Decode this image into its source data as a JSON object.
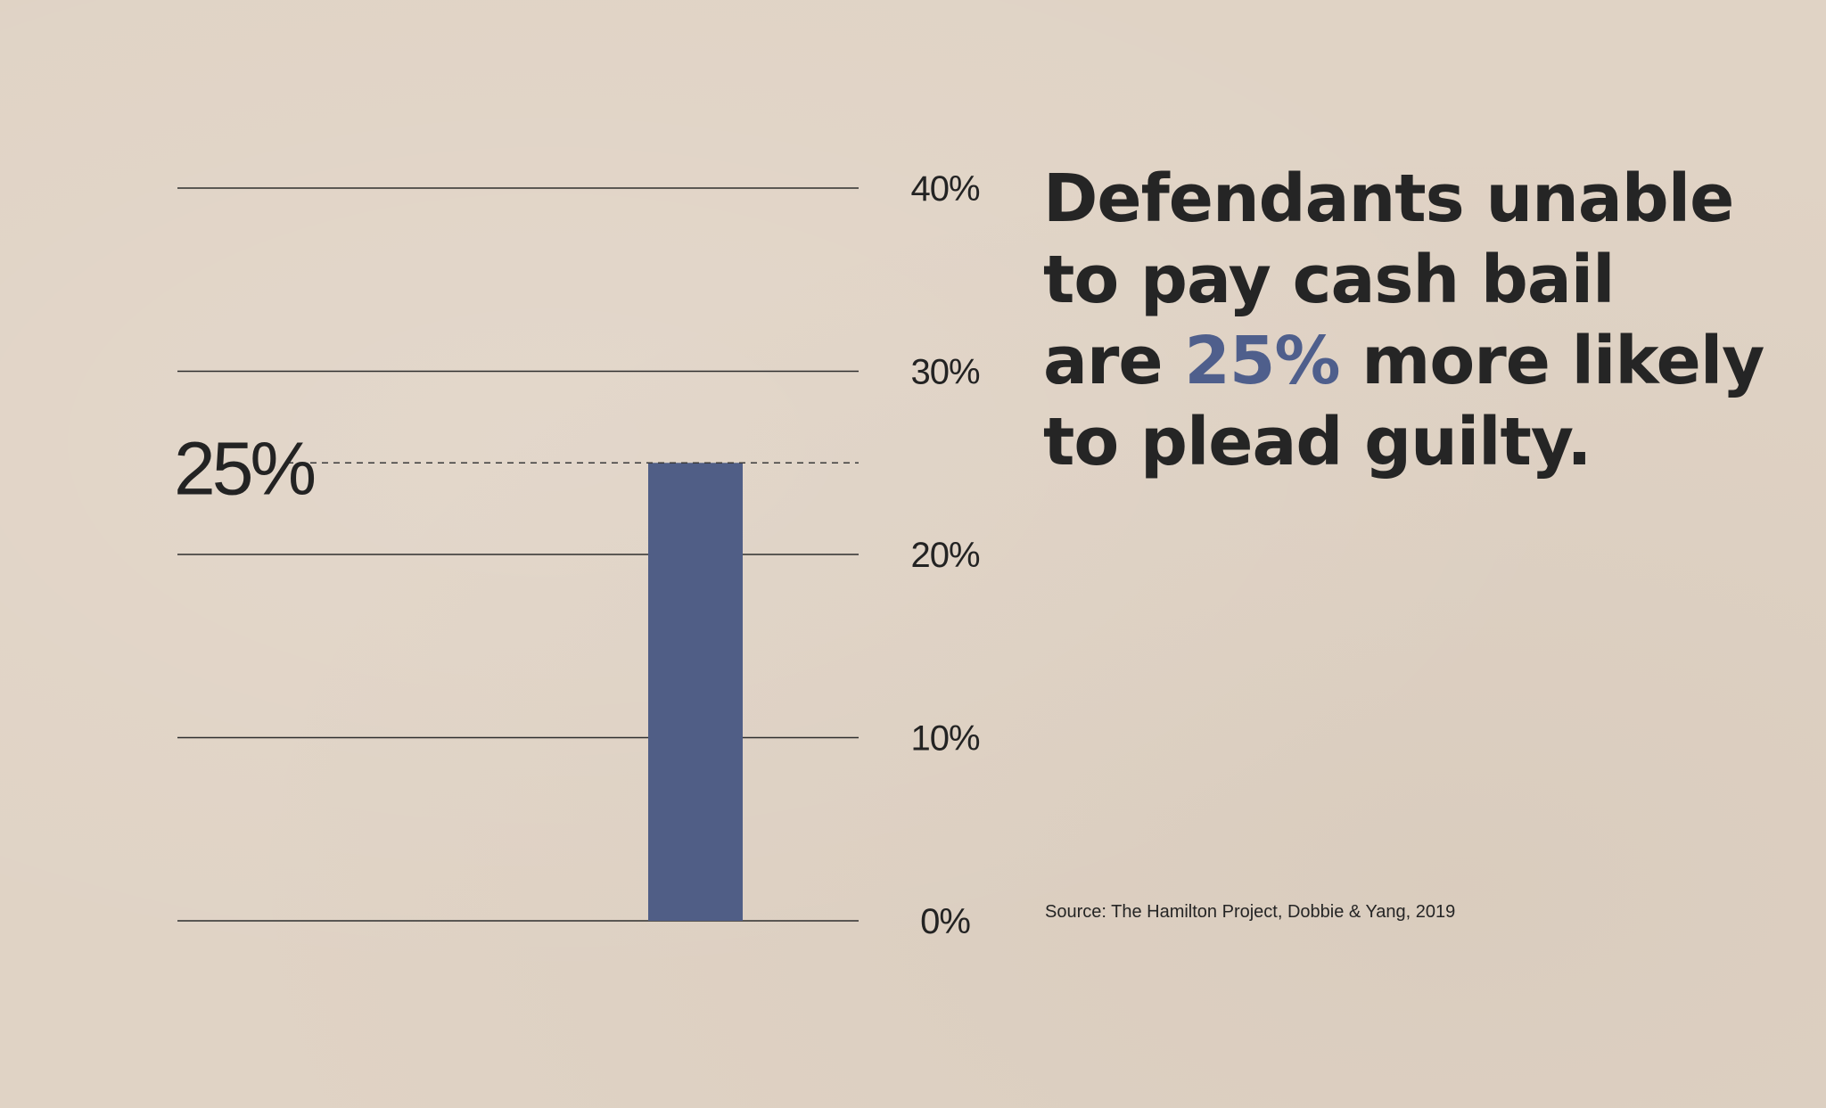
{
  "chart_data": {
    "type": "bar",
    "categories": [
      ""
    ],
    "values": [
      25
    ],
    "ylim": [
      0,
      40
    ],
    "yticks": [
      0,
      10,
      20,
      30,
      40
    ],
    "ytick_labels": [
      "0%",
      "10%",
      "20%",
      "30%",
      "40%"
    ],
    "grid": true,
    "callout": {
      "value": 25,
      "label": "25%"
    },
    "bar_color": "#505e86",
    "grid_color": "#2e2e2e"
  },
  "headline": {
    "line1": "Defendants unable",
    "line2": "to pay cash bail",
    "line3_pre": "are ",
    "line3_accent": "25%",
    "line3_post": " more likely",
    "line4": "to plead guilty."
  },
  "source": "Source: The Hamilton Project, Dobbie & Yang, 2019",
  "colors": {
    "accent": "#4f5f8c",
    "background": "#e0d3c5",
    "text": "#252525"
  }
}
